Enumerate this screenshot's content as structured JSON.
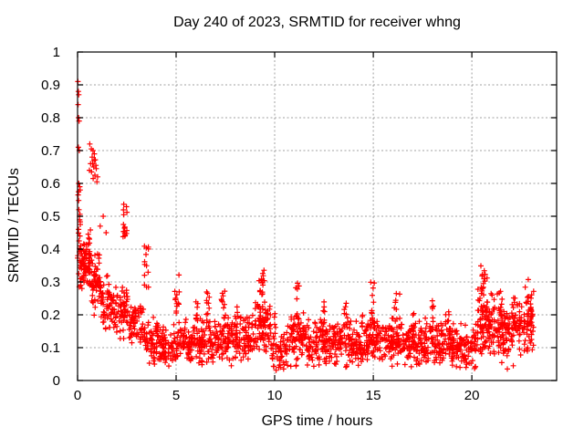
{
  "window": {
    "background": "#ffffff"
  },
  "chart_data": {
    "type": "scatter",
    "title": "Day 240 of 2023, SRMTID for receiver whng",
    "xlabel": "GPS time / hours",
    "ylabel": "SRMTID / TECUs",
    "xlim": [
      0,
      24.3
    ],
    "ylim": [
      0,
      1
    ],
    "xticks": [
      0,
      5,
      10,
      15,
      20
    ],
    "yticks": [
      0,
      0.1,
      0.2,
      0.3,
      0.4,
      0.5,
      0.6,
      0.7,
      0.8,
      0.9,
      1
    ],
    "grid": true,
    "legend_position": "none",
    "marker": {
      "shape": "plus",
      "color": "#ff0000",
      "size": 6,
      "stroke_width": 1.2
    },
    "grid_color": "#a0a0a0",
    "axis_color": "#000000",
    "series_name": "SRMTID",
    "seed": 2023240,
    "outlier_points": [
      [
        0.02,
        0.91
      ],
      [
        0.04,
        0.88
      ],
      [
        0.06,
        0.87
      ],
      [
        0.03,
        0.84
      ],
      [
        0.05,
        0.8
      ],
      [
        0.08,
        0.79
      ],
      [
        0.04,
        0.71
      ],
      [
        0.09,
        0.7
      ],
      [
        0.06,
        0.6
      ],
      [
        0.11,
        0.59
      ],
      [
        0.13,
        0.58
      ],
      [
        0.03,
        0.565
      ],
      [
        0.07,
        0.52
      ],
      [
        0.1,
        0.5
      ],
      [
        0.14,
        0.475
      ],
      [
        0.05,
        0.46
      ],
      [
        0.12,
        0.44
      ],
      [
        0.08,
        0.425
      ],
      [
        0.15,
        0.41
      ],
      [
        0.18,
        0.395
      ],
      [
        0.02,
        0.38
      ],
      [
        0.1,
        0.365
      ],
      [
        0.16,
        0.35
      ],
      [
        0.2,
        0.34
      ],
      [
        0.06,
        0.325
      ],
      [
        0.13,
        0.31
      ],
      [
        0.17,
        0.3
      ],
      [
        0.09,
        0.285
      ],
      [
        0.22,
        0.28
      ],
      [
        0.62,
        0.72
      ],
      [
        0.7,
        0.705
      ],
      [
        0.78,
        0.7
      ],
      [
        0.85,
        0.69
      ],
      [
        0.74,
        0.68
      ],
      [
        0.9,
        0.672
      ],
      [
        0.66,
        0.66
      ],
      [
        0.82,
        0.65
      ],
      [
        0.95,
        0.645
      ],
      [
        0.71,
        0.635
      ],
      [
        0.88,
        0.625
      ],
      [
        0.79,
        0.615
      ],
      [
        0.98,
        0.605
      ],
      [
        1.02,
        0.62
      ],
      [
        0.6,
        0.64
      ],
      [
        0.93,
        0.655
      ],
      [
        0.76,
        0.66
      ],
      [
        0.84,
        0.67
      ],
      [
        1.3,
        0.5
      ],
      [
        1.15,
        0.47
      ],
      [
        1.45,
        0.45
      ],
      [
        3.9,
        0.05
      ],
      [
        4.45,
        0.055
      ],
      [
        7.8,
        0.045
      ],
      [
        10.2,
        0.04
      ],
      [
        10.45,
        0.035
      ],
      [
        13.1,
        0.05
      ],
      [
        17.35,
        0.05
      ],
      [
        19.4,
        0.04
      ],
      [
        21.8,
        0.035
      ],
      [
        22.1,
        0.045
      ]
    ],
    "baseline_bands": [
      [
        0.0,
        0.15,
        0.44,
        0.1,
        10
      ],
      [
        0.15,
        0.7,
        0.36,
        0.055,
        78
      ],
      [
        0.7,
        1.2,
        0.295,
        0.055,
        58
      ],
      [
        1.2,
        1.8,
        0.235,
        0.05,
        58
      ],
      [
        1.8,
        2.6,
        0.21,
        0.05,
        66
      ],
      [
        2.6,
        3.4,
        0.185,
        0.045,
        62
      ],
      [
        3.4,
        4.2,
        0.125,
        0.042,
        66
      ],
      [
        4.2,
        5.0,
        0.108,
        0.038,
        66
      ],
      [
        5.0,
        6.0,
        0.115,
        0.042,
        82
      ],
      [
        6.0,
        7.0,
        0.12,
        0.042,
        82
      ],
      [
        7.0,
        8.0,
        0.125,
        0.042,
        82
      ],
      [
        8.0,
        9.0,
        0.13,
        0.047,
        82
      ],
      [
        9.0,
        9.8,
        0.165,
        0.055,
        76
      ],
      [
        9.8,
        10.6,
        0.088,
        0.034,
        52
      ],
      [
        10.6,
        11.6,
        0.125,
        0.048,
        82
      ],
      [
        11.6,
        12.6,
        0.115,
        0.044,
        82
      ],
      [
        12.6,
        13.6,
        0.115,
        0.044,
        82
      ],
      [
        13.6,
        14.6,
        0.11,
        0.044,
        82
      ],
      [
        14.6,
        15.6,
        0.12,
        0.044,
        82
      ],
      [
        15.6,
        16.6,
        0.12,
        0.044,
        82
      ],
      [
        16.6,
        17.6,
        0.115,
        0.044,
        82
      ],
      [
        17.6,
        18.6,
        0.115,
        0.044,
        82
      ],
      [
        18.6,
        19.6,
        0.108,
        0.044,
        82
      ],
      [
        19.6,
        20.3,
        0.1,
        0.042,
        56
      ],
      [
        20.3,
        21.1,
        0.175,
        0.062,
        88
      ],
      [
        21.1,
        22.0,
        0.15,
        0.058,
        86
      ],
      [
        22.0,
        23.15,
        0.175,
        0.058,
        96
      ]
    ],
    "spike_columns": [
      [
        2.42,
        0.22,
        0.4,
        0.575,
        16
      ],
      [
        3.5,
        0.25,
        0.28,
        0.43,
        13
      ],
      [
        5.05,
        0.28,
        0.2,
        0.335,
        13
      ],
      [
        6.05,
        0.15,
        0.17,
        0.25,
        8
      ],
      [
        6.6,
        0.2,
        0.17,
        0.27,
        9
      ],
      [
        7.4,
        0.22,
        0.18,
        0.3,
        11
      ],
      [
        8.05,
        0.15,
        0.16,
        0.23,
        7
      ],
      [
        9.35,
        0.32,
        0.17,
        0.345,
        24
      ],
      [
        10.0,
        0.1,
        0.14,
        0.22,
        5
      ],
      [
        11.15,
        0.2,
        0.17,
        0.3,
        11
      ],
      [
        12.45,
        0.2,
        0.16,
        0.26,
        9
      ],
      [
        13.6,
        0.2,
        0.16,
        0.25,
        9
      ],
      [
        14.45,
        0.15,
        0.15,
        0.22,
        6
      ],
      [
        14.95,
        0.2,
        0.17,
        0.3,
        10
      ],
      [
        16.2,
        0.3,
        0.16,
        0.27,
        11
      ],
      [
        17.05,
        0.15,
        0.14,
        0.22,
        6
      ],
      [
        17.95,
        0.2,
        0.15,
        0.25,
        8
      ],
      [
        18.75,
        0.2,
        0.14,
        0.24,
        8
      ],
      [
        20.6,
        0.4,
        0.18,
        0.355,
        22
      ],
      [
        21.4,
        0.3,
        0.15,
        0.285,
        13
      ],
      [
        22.2,
        0.25,
        0.15,
        0.27,
        11
      ],
      [
        22.85,
        0.3,
        0.16,
        0.325,
        15
      ]
    ]
  }
}
